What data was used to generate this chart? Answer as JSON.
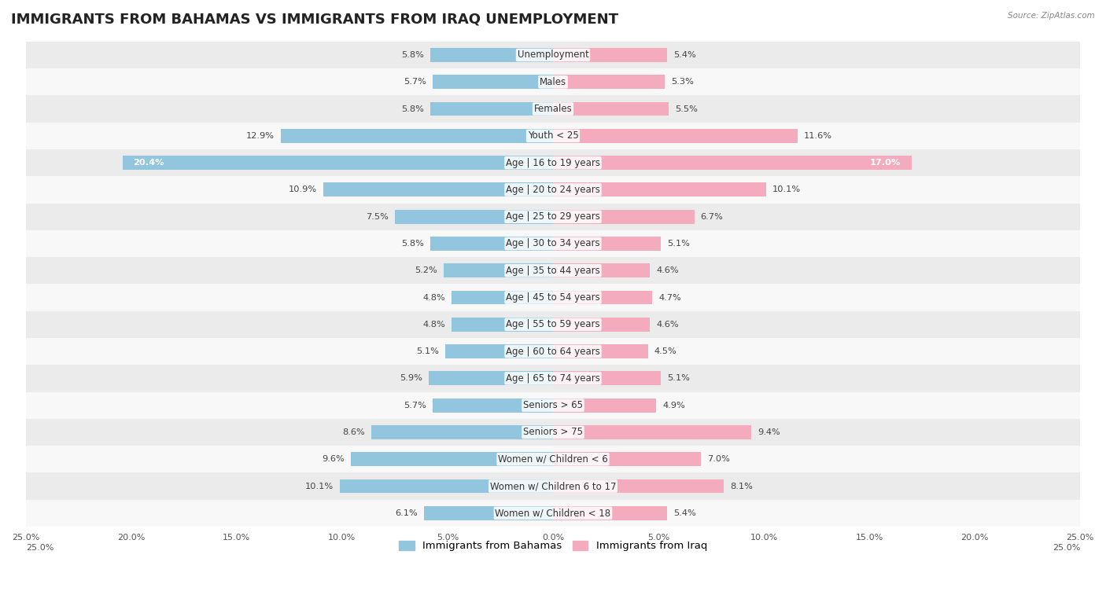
{
  "title": "IMMIGRANTS FROM BAHAMAS VS IMMIGRANTS FROM IRAQ UNEMPLOYMENT",
  "source": "Source: ZipAtlas.com",
  "categories": [
    "Unemployment",
    "Males",
    "Females",
    "Youth < 25",
    "Age | 16 to 19 years",
    "Age | 20 to 24 years",
    "Age | 25 to 29 years",
    "Age | 30 to 34 years",
    "Age | 35 to 44 years",
    "Age | 45 to 54 years",
    "Age | 55 to 59 years",
    "Age | 60 to 64 years",
    "Age | 65 to 74 years",
    "Seniors > 65",
    "Seniors > 75",
    "Women w/ Children < 6",
    "Women w/ Children 6 to 17",
    "Women w/ Children < 18"
  ],
  "bahamas_values": [
    5.8,
    5.7,
    5.8,
    12.9,
    20.4,
    10.9,
    7.5,
    5.8,
    5.2,
    4.8,
    4.8,
    5.1,
    5.9,
    5.7,
    8.6,
    9.6,
    10.1,
    6.1
  ],
  "iraq_values": [
    5.4,
    5.3,
    5.5,
    11.6,
    17.0,
    10.1,
    6.7,
    5.1,
    4.6,
    4.7,
    4.6,
    4.5,
    5.1,
    4.9,
    9.4,
    7.0,
    8.1,
    5.4
  ],
  "bahamas_color": "#92C5DE",
  "iraq_color": "#F4ABBE",
  "bg_color_odd": "#EBEBEB",
  "bg_color_even": "#F8F8F8",
  "axis_limit": 25.0,
  "title_fontsize": 13,
  "label_fontsize": 8.5,
  "value_fontsize": 8.2,
  "legend_fontsize": 9.5,
  "bar_height": 0.52,
  "value_label_special_color_bahamas": "#FFFFFF",
  "value_label_special_iraq": "#FFFFFF",
  "special_rows": [
    4
  ]
}
